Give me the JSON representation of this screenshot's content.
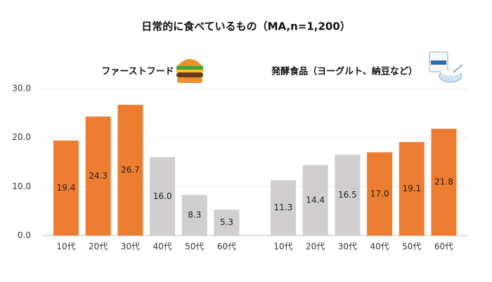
{
  "chart_data": {
    "type": "bar",
    "title": "日常的に食べているもの（MA,n=1,200）",
    "ylim": [
      0,
      30
    ],
    "yticks": [
      {
        "value": 0,
        "label": "0.0"
      },
      {
        "value": 10,
        "label": "10.0"
      },
      {
        "value": 20,
        "label": "20.0"
      },
      {
        "value": 30,
        "label": "30.0"
      }
    ],
    "grid": true,
    "groups": [
      {
        "name": "ファーストフード",
        "categories": [
          "10代",
          "20代",
          "30代",
          "40代",
          "50代",
          "60代"
        ],
        "values": [
          19.4,
          24.3,
          26.7,
          16.0,
          8.3,
          5.3
        ],
        "value_labels": [
          "19.4",
          "24.3",
          "26.7",
          "16.0",
          "8.3",
          "5.3"
        ],
        "colors": [
          "#ed7d31",
          "#ed7d31",
          "#ed7d31",
          "#d0cece",
          "#d0cece",
          "#d0cece"
        ]
      },
      {
        "name": "発酵食品（ヨーグルト、納豆など）",
        "categories": [
          "10代",
          "20代",
          "30代",
          "40代",
          "50代",
          "60代"
        ],
        "values": [
          11.3,
          14.4,
          16.5,
          17.0,
          19.1,
          21.8
        ],
        "value_labels": [
          "11.3",
          "14.4",
          "16.5",
          "17.0",
          "19.1",
          "21.8"
        ],
        "colors": [
          "#d0cece",
          "#d0cece",
          "#d0cece",
          "#ed7d31",
          "#ed7d31",
          "#ed7d31"
        ]
      }
    ]
  }
}
